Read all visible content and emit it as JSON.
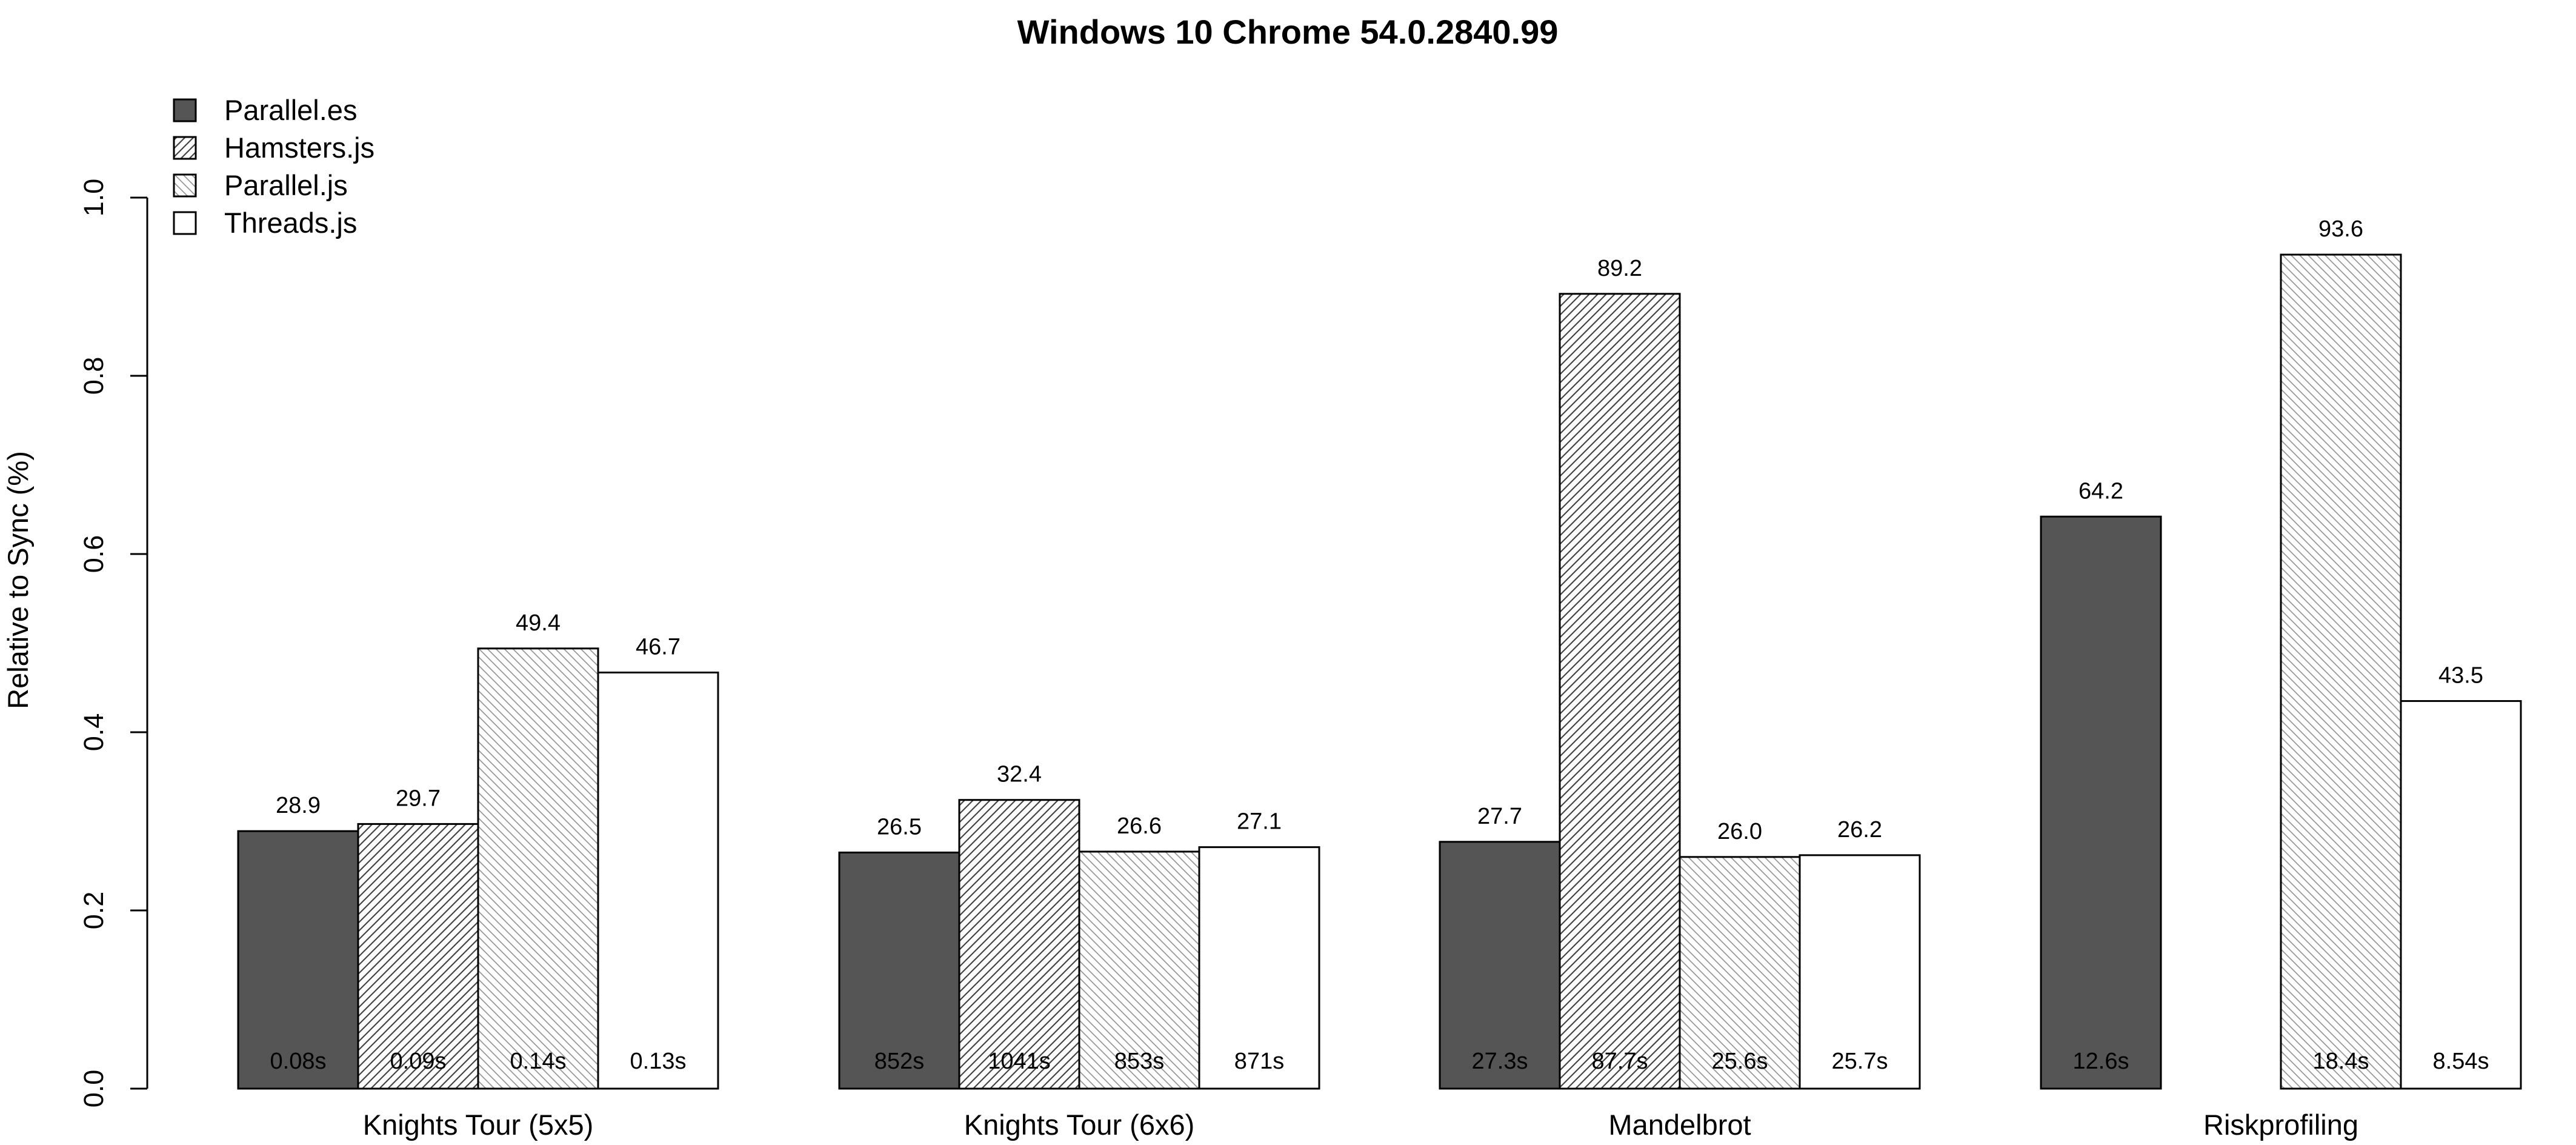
{
  "chart_data": {
    "type": "bar",
    "title": "Windows 10 Chrome 54.0.2840.99",
    "xlabel": "",
    "ylabel": "Relative to Sync (%)",
    "ylim": [
      0,
      1.0
    ],
    "yticks": [
      "0.0",
      "0.2",
      "0.4",
      "0.6",
      "0.8",
      "1.0"
    ],
    "grid": false,
    "legend_position": "top-left",
    "categories": [
      "Knights Tour (5x5)",
      "Knights Tour (6x6)",
      "Mandelbrot",
      "Riskprofiling"
    ],
    "series": [
      {
        "name": "Parallel.es",
        "pattern": "solid",
        "color": "#555555",
        "values": [
          0.289,
          0.265,
          0.277,
          0.642
        ],
        "top_labels": [
          "28.9",
          "26.5",
          "27.7",
          "64.2"
        ],
        "time_labels": [
          "0.08s",
          "852s",
          "27.3s",
          "12.6s"
        ]
      },
      {
        "name": "Hamsters.js",
        "pattern": "dense-hatch",
        "color": "#000000",
        "values": [
          0.297,
          0.324,
          0.892,
          null
        ],
        "top_labels": [
          "29.7",
          "32.4",
          "89.2",
          ""
        ],
        "time_labels": [
          "0.09s",
          "1041s",
          "87.7s",
          ""
        ]
      },
      {
        "name": "Parallel.js",
        "pattern": "light-hatch",
        "color": "#000000",
        "values": [
          0.494,
          0.266,
          0.26,
          0.936
        ],
        "top_labels": [
          "49.4",
          "26.6",
          "26.0",
          "93.6"
        ],
        "time_labels": [
          "0.14s",
          "853s",
          "25.6s",
          "18.4s"
        ]
      },
      {
        "name": "Threads.js",
        "pattern": "none",
        "color": "#ffffff",
        "values": [
          0.467,
          0.271,
          0.262,
          0.435
        ],
        "top_labels": [
          "46.7",
          "27.1",
          "26.2",
          "43.5"
        ],
        "time_labels": [
          "0.13s",
          "871s",
          "25.7s",
          "8.54s"
        ]
      }
    ]
  }
}
